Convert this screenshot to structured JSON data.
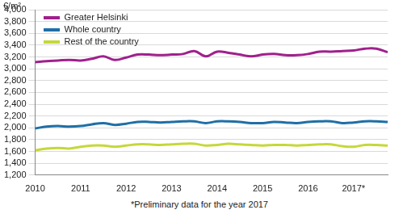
{
  "chart_data": {
    "type": "line",
    "y_label": "€/m²",
    "footnote": "*Preliminary data for the year 2017",
    "categories": [
      "2010",
      null,
      null,
      null,
      "2011",
      null,
      null,
      null,
      "2012",
      null,
      null,
      null,
      "2013",
      null,
      null,
      null,
      "2014",
      null,
      null,
      null,
      "2015",
      null,
      null,
      null,
      "2016",
      null,
      null,
      null,
      "2017*",
      null,
      null,
      null
    ],
    "series": [
      {
        "name": "Greater Helsinki",
        "color": "#a0208c",
        "values": [
          3110,
          3130,
          3140,
          3150,
          3140,
          3170,
          3210,
          3150,
          3190,
          3240,
          3240,
          3230,
          3240,
          3250,
          3300,
          3210,
          3290,
          3270,
          3240,
          3210,
          3240,
          3250,
          3230,
          3230,
          3250,
          3290,
          3290,
          3300,
          3310,
          3340,
          3340,
          3280
        ]
      },
      {
        "name": "Whole country",
        "color": "#1f6fa6",
        "values": [
          1990,
          2020,
          2030,
          2020,
          2030,
          2060,
          2080,
          2050,
          2070,
          2100,
          2100,
          2090,
          2100,
          2110,
          2110,
          2080,
          2110,
          2110,
          2100,
          2080,
          2080,
          2100,
          2090,
          2080,
          2100,
          2110,
          2110,
          2080,
          2090,
          2110,
          2110,
          2100
        ]
      },
      {
        "name": "Rest of the country",
        "color": "#c5d83a",
        "values": [
          1620,
          1650,
          1660,
          1650,
          1680,
          1700,
          1700,
          1680,
          1700,
          1720,
          1720,
          1710,
          1720,
          1730,
          1730,
          1700,
          1710,
          1730,
          1720,
          1710,
          1700,
          1710,
          1710,
          1700,
          1710,
          1720,
          1720,
          1690,
          1680,
          1710,
          1710,
          1700
        ]
      }
    ],
    "ylim": [
      1200,
      4000
    ],
    "yticks": [
      1200,
      1400,
      1600,
      1800,
      2000,
      2200,
      2400,
      2600,
      2800,
      3000,
      3200,
      3400,
      3600,
      3800,
      4000
    ],
    "grid": true,
    "legend": "upper left"
  }
}
